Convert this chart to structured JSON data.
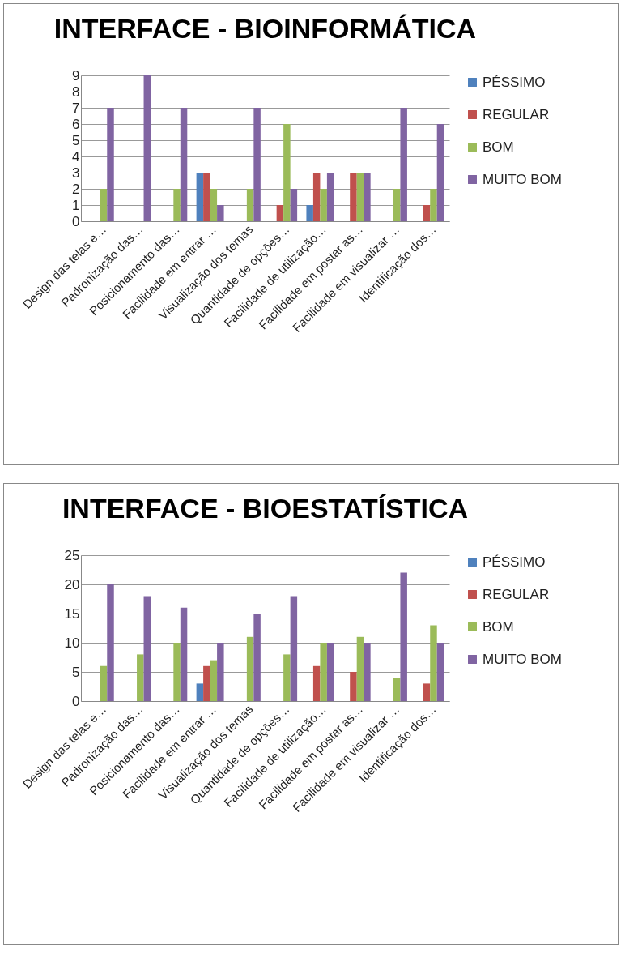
{
  "chart_data": [
    {
      "type": "bar",
      "title": "INTERFACE - BIOINFORMÁTICA",
      "categories": [
        "Design das telas e…",
        "Padronização das…",
        "Posicionamento das…",
        "Facilidade em entrar …",
        "Visualização dos temas",
        "Quantidade de opções…",
        "Facilidade de utilização…",
        "Facilidade em postar as…",
        "Facilidade em visualizar …",
        "Identificação dos…"
      ],
      "series": [
        {
          "name": "PÉSSIMO",
          "color": "#4f81bd",
          "values": [
            0,
            0,
            0,
            3,
            0,
            0,
            1,
            0,
            0,
            0
          ]
        },
        {
          "name": "REGULAR",
          "color": "#c0504d",
          "values": [
            0,
            0,
            0,
            3,
            0,
            1,
            3,
            3,
            0,
            1
          ]
        },
        {
          "name": "BOM",
          "color": "#9bbb59",
          "values": [
            2,
            0,
            2,
            2,
            2,
            6,
            2,
            3,
            2,
            2
          ]
        },
        {
          "name": "MUITO BOM",
          "color": "#8064a2",
          "values": [
            7,
            9,
            7,
            1,
            7,
            2,
            3,
            3,
            7,
            6
          ]
        }
      ],
      "ylim": [
        0,
        9
      ],
      "yticks": [
        0,
        1,
        2,
        3,
        4,
        5,
        6,
        7,
        8,
        9
      ],
      "grid": "y",
      "legend": "right"
    },
    {
      "type": "bar",
      "title": "INTERFACE - BIOESTATÍSTICA",
      "categories": [
        "Design das telas e…",
        "Padronização das…",
        "Posicionamento das…",
        "Facilidade em entrar …",
        "Visualização dos temas",
        "Quantidade de opções…",
        "Facilidade de utilização…",
        "Facilidade em postar as…",
        "Facilidade em visualizar …",
        "Identificação dos…"
      ],
      "series": [
        {
          "name": "PÉSSIMO",
          "color": "#4f81bd",
          "values": [
            0,
            0,
            0,
            3,
            0,
            0,
            0,
            0,
            0,
            0
          ]
        },
        {
          "name": "REGULAR",
          "color": "#c0504d",
          "values": [
            0,
            0,
            0,
            6,
            0,
            0,
            6,
            5,
            0,
            3
          ]
        },
        {
          "name": "BOM",
          "color": "#9bbb59",
          "values": [
            6,
            8,
            10,
            7,
            11,
            8,
            10,
            11,
            4,
            13
          ]
        },
        {
          "name": "MUITO BOM",
          "color": "#8064a2",
          "values": [
            20,
            18,
            16,
            10,
            15,
            18,
            10,
            10,
            22,
            10
          ]
        }
      ],
      "ylim": [
        0,
        25
      ],
      "yticks": [
        0,
        5,
        10,
        15,
        20,
        25
      ],
      "grid": "y",
      "legend": "right"
    }
  ]
}
